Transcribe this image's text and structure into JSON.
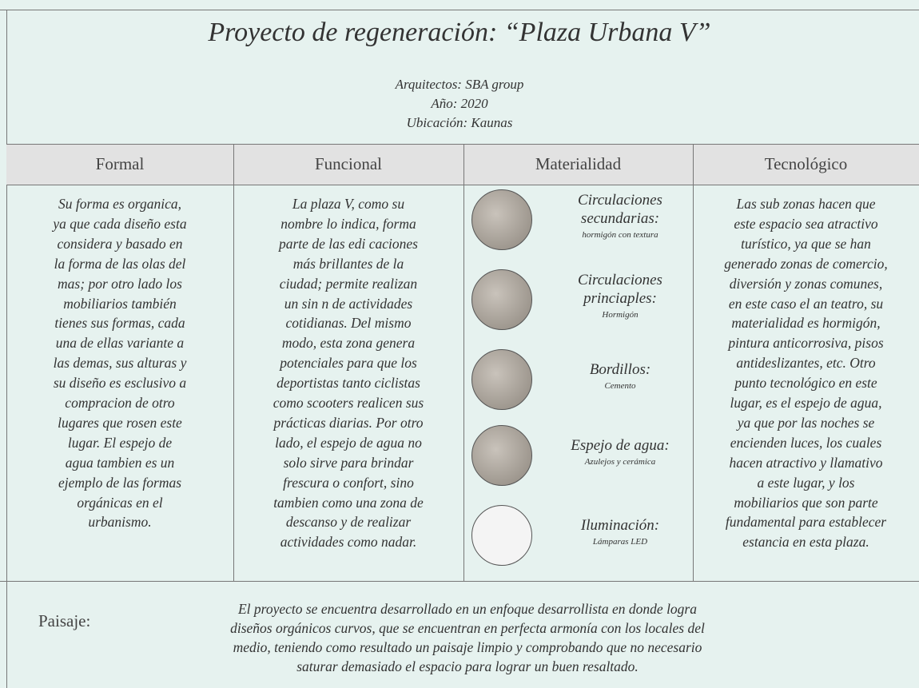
{
  "header": {
    "title": "Proyecto de regeneración: “Plaza Urbana V”",
    "details": [
      "Arquitectos: SBA group",
      "Año: 2020",
      "Ubicación:  Kaunas"
    ]
  },
  "table": {
    "headers": [
      "Formal",
      "Funcional",
      "Materialidad",
      "Tecnológico"
    ],
    "formal": [
      "Su forma es organica,",
      "ya que cada diseño esta",
      "considera y basado en",
      "la forma de las olas del",
      "mas; por otro lado los",
      "mobiliarios también",
      "tienes sus formas, cada",
      "una de ellas variante a",
      "las demas, sus alturas y",
      "su diseño es esclusivo a",
      "compracion de otro",
      "lugares que rosen este",
      "lugar. El espejo de",
      "agua tambien es un",
      "ejemplo de las formas",
      "orgánicas en el",
      "urbanismo."
    ],
    "funcional": [
      "La plaza V, como su",
      "nombre lo indica, forma",
      "parte de las edi caciones",
      "más brillantes de la",
      "ciudad; permite realizan",
      "un sin   n de actividades",
      "cotidianas. Del mismo",
      "modo, esta zona genera",
      "potenciales para que los",
      "deportistas tanto ciclistas",
      "como scooters realicen sus",
      "prácticas diarias. Por otro",
      "lado, el espejo de agua no",
      "solo sirve para brindar",
      "frescura o confort, sino",
      "tambien como una zona de",
      "descanso y de realizar",
      "actividades como nadar."
    ],
    "materialidad": [
      {
        "title": [
          "Circulaciones",
          "secundarias:"
        ],
        "material": "hormigón con textura"
      },
      {
        "title": [
          "Circulaciones",
          "princiaples:"
        ],
        "material": "Hormigón"
      },
      {
        "title": [
          "Bordillos:"
        ],
        "material": "Cemento"
      },
      {
        "title": [
          "Espejo de agua:"
        ],
        "material": "Azulejos y cerámica"
      },
      {
        "title": [
          "Iluminación:"
        ],
        "material": "Lámparas LED"
      }
    ],
    "tecnologico": [
      "Las sub zonas hacen que",
      "este espacio sea atractivo",
      "turístico, ya que se han",
      "generado zonas de comercio,",
      "diversión y zonas comunes,",
      "en este caso el an  teatro, su",
      "materialidad es hormigón,",
      "pintura anticorrosiva, pisos",
      "antideslizantes, etc. Otro",
      "punto tecnológico en este",
      "lugar, es el espejo de agua,",
      "ya que por las noches se",
      "encienden luces, los cuales",
      "hacen atractivo y llamativo",
      "a este lugar, y los",
      "mobiliarios que son parte",
      "fundamental para establecer",
      "estancia en esta plaza."
    ]
  },
  "footer": {
    "label": "Paisaje:",
    "lines": [
      "El proyecto se encuentra desarrollado en un enfoque desarrollista en donde logra",
      "diseños orgánicos curvos, que se encuentran en perfecta armonía con los locales del",
      "medio, teniendo como resultado un paisaje limpio y comprobando que no necesario",
      "saturar demasiado el espacio para lograr un buen resaltado."
    ]
  }
}
